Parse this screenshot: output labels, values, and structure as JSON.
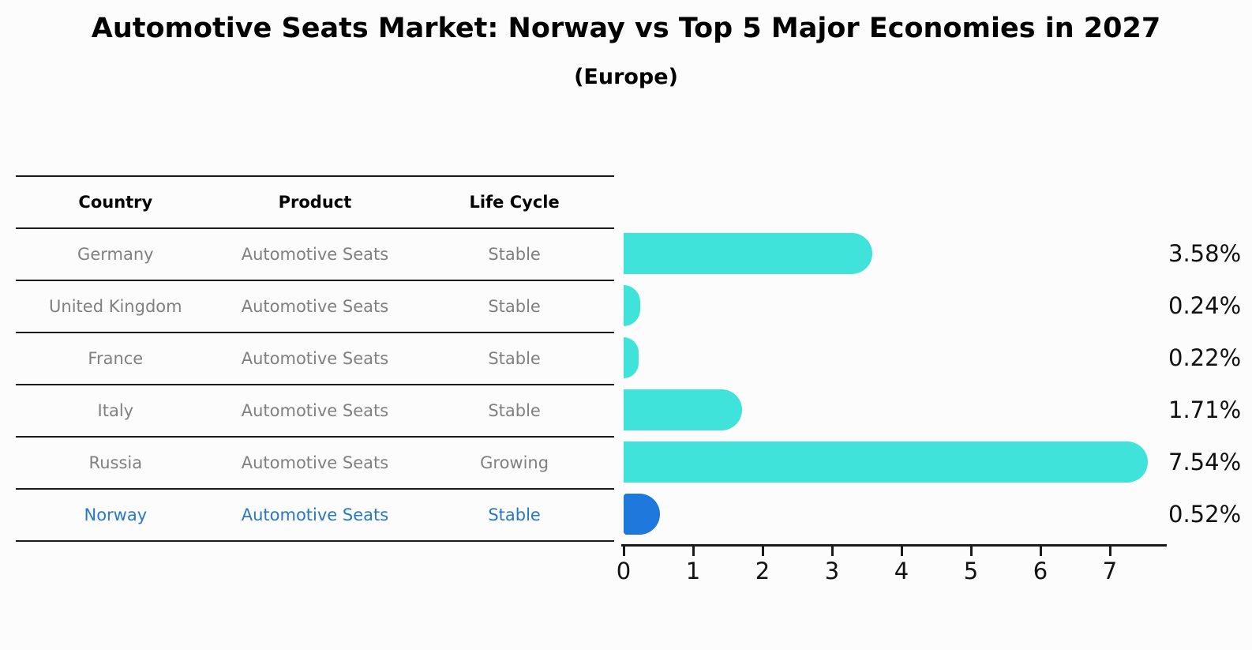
{
  "title": "Automotive Seats Market: Norway vs Top 5 Major Economies in 2027",
  "subtitle": "(Europe)",
  "table": {
    "headers": [
      "Country",
      "Product",
      "Life Cycle"
    ],
    "rows": [
      {
        "country": "Germany",
        "product": "Automotive Seats",
        "life_cycle": "Stable",
        "highlight": false
      },
      {
        "country": "United Kingdom",
        "product": "Automotive Seats",
        "life_cycle": "Stable",
        "highlight": false
      },
      {
        "country": "France",
        "product": "Automotive Seats",
        "life_cycle": "Stable",
        "highlight": false
      },
      {
        "country": "Italy",
        "product": "Automotive Seats",
        "life_cycle": "Stable",
        "highlight": false
      },
      {
        "country": "Russia",
        "product": "Automotive Seats",
        "life_cycle": "Growing",
        "highlight": false
      },
      {
        "country": "Norway",
        "product": "Automotive Seats",
        "life_cycle": "Stable",
        "highlight": true
      }
    ]
  },
  "chart_data": {
    "type": "bar",
    "orientation": "horizontal",
    "title": "Automotive Seats Market: Norway vs Top 5 Major Economies in 2027",
    "subtitle": "(Europe)",
    "categories": [
      "Germany",
      "United Kingdom",
      "France",
      "Italy",
      "Russia",
      "Norway"
    ],
    "values": [
      3.58,
      0.24,
      0.22,
      1.71,
      7.54,
      0.52
    ],
    "value_labels": [
      "3.58%",
      "0.24%",
      "0.22%",
      "1.71%",
      "7.54%",
      "0.52%"
    ],
    "xlim": [
      0,
      7.85
    ],
    "xticks": [
      "0",
      "1",
      "2",
      "3",
      "4",
      "5",
      "6",
      "7"
    ],
    "grid": false,
    "legend": false,
    "bar_color": "#3fe3da",
    "highlight_color": "#1f78dc",
    "highlight_index": 5
  },
  "colors": {
    "background": "#fcfcfc",
    "text": "#000000",
    "muted_text": "#808080",
    "highlight_text": "#2878c8",
    "rule": "#1a1a1a"
  }
}
